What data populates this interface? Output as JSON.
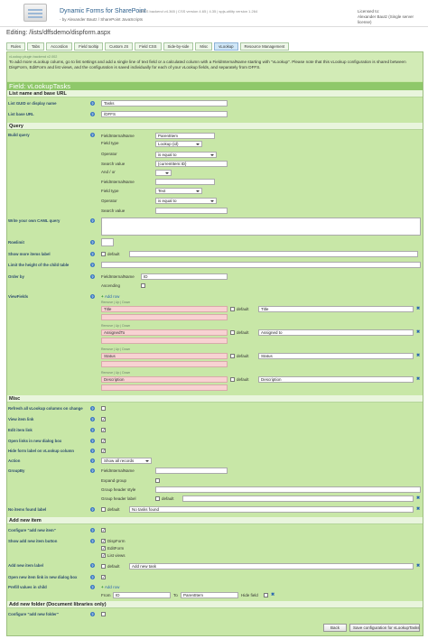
{
  "header": {
    "app_title": "Dynamic Forms for SharePoint",
    "app_version": "DFFS backend v4.365 | CSS version 4.65 | 4.35 | spjs-utility version 1.264",
    "app_by": "- by Alexander Bautz / SharePoint JavaScripts",
    "license_line1": "Licensed to:",
    "license_line2": "Alexander Bautz (Single server license)"
  },
  "editing_path": "Editing: /lists/dffsdemo/dispform.aspx",
  "tabs": [
    {
      "label": "Rules",
      "active": false
    },
    {
      "label": "Tabs",
      "active": false
    },
    {
      "label": "Accordion",
      "active": false
    },
    {
      "label": "Field tooltip",
      "active": false
    },
    {
      "label": "Custom JS",
      "active": false
    },
    {
      "label": "Field CSS",
      "active": false
    },
    {
      "label": "Side-by-side",
      "active": false
    },
    {
      "label": "Misc",
      "active": false
    },
    {
      "label": "vLookup",
      "active": true
    },
    {
      "label": "Resource Management",
      "active": false
    }
  ],
  "info": {
    "plugin_version": "vLookup plugin backend v2.002",
    "text": "To add more vLookup colums, go to list settings and add a single line of text field or a calculated column with a FieldInternalName starting with \"vLookup\". Please note that this vLookup configuration is shared between DispForm, EditForm and list views, and the configuration is saved individually for each of your vLookup fields, and separately from DFFS."
  },
  "field_title": "Field: vLookupTasks",
  "sections": {
    "list_name": "List name and base URL",
    "query": "Query",
    "misc": "Misc",
    "add_new_item": "Add new item",
    "add_new_folder": "Add new folder (Document libraries only)"
  },
  "labels": {
    "list_guid": "List GUID or display name",
    "list_base_url": "List base URL",
    "build_query": "Build query",
    "caml_query": "Write your own CAML query",
    "rowlimit": "Rowlimit",
    "show_more_label": "Show more items label",
    "limit_height": "Limit the height of the child table",
    "order_by": "Order by",
    "viewfields": "ViewFields",
    "refresh_all": "Refresh all vLookup columns on change",
    "view_item_link": "View item link",
    "edit_item_link": "Edit item link",
    "open_dialog": "Open links in new dialog box",
    "hide_form_label": "Hide form label on vLookup column",
    "action": "Action",
    "groupby": "GroupBy",
    "no_items_label": "No items found label",
    "configure_add_item": "Configure \"add new item\"",
    "show_add_button": "Show add new item button",
    "add_item_label": "Add new item label",
    "open_new_dialog": "Open new item link in new dialog box",
    "prefill": "Prefill values in child",
    "configure_add_folder": "Configure \"add new folder\""
  },
  "values": {
    "list_guid": "Tasks",
    "list_base_url": "/DFFS",
    "rowlimit": "",
    "show_more_default": "default",
    "show_more_value": "",
    "limit_height": "",
    "order_by_fin_label": "FieldInternalName",
    "order_by_value": "ID",
    "ascending_label": "Ascending",
    "add_row": "Add row",
    "action": "Show all records",
    "no_items_default": "default",
    "no_items_value": "No tasks found",
    "add_item_default": "default",
    "add_item_value": "Add new task",
    "prefill_add_row": "Add row",
    "prefill_from_label": "From",
    "prefill_from_value": "ID",
    "prefill_to_label": "To",
    "prefill_to_value": "ParentItem",
    "prefill_hide_label": "Hide field"
  },
  "query": {
    "fin_label": "FieldInternalName",
    "fin_value": "ParentItem",
    "field_type_label": "Field type",
    "field_type_value": "Lookup (id)",
    "operator_label": "Operator",
    "operator_value": "is equal to",
    "search_label": "Search value",
    "search_value": "{currentItem:ID}",
    "andor_label": "And / or",
    "andor_value": "",
    "fin2_label": "FieldInternalName",
    "fin2_value": "",
    "field_type2_label": "Field type",
    "field_type2_value": "Text",
    "operator2_label": "Operator",
    "operator2_value": "is equal to",
    "search2_label": "Search value",
    "search2_value": ""
  },
  "viewfields": [
    {
      "controls": "Remove | Up | Down",
      "field": "Title",
      "default": "default",
      "label": "Title"
    },
    {
      "controls": "Remove | Up | Down",
      "field": "AssignedTo",
      "default": "default",
      "label": "Assigned to"
    },
    {
      "controls": "Remove | Up | Down",
      "field": "Status",
      "default": "default",
      "label": "Status"
    },
    {
      "controls": "Remove | Up | Down",
      "field": "Description",
      "default": "default",
      "label": "Description"
    }
  ],
  "groupby": {
    "fin_label": "FieldInternalName",
    "expand_label": "Expand group",
    "style_label": "Group header style",
    "header_label": "Group header label",
    "header_default": "default"
  },
  "add_button_options": [
    "DispForm",
    "EditForm",
    "List views"
  ],
  "buttons": {
    "back": "Back",
    "save": "Save configuration for vLookupTasks"
  },
  "colors": {
    "panel": "#c8e7a7",
    "header_band": "#8fc86a",
    "link": "#2a66b0",
    "pink_row": "#f8d2d2"
  }
}
